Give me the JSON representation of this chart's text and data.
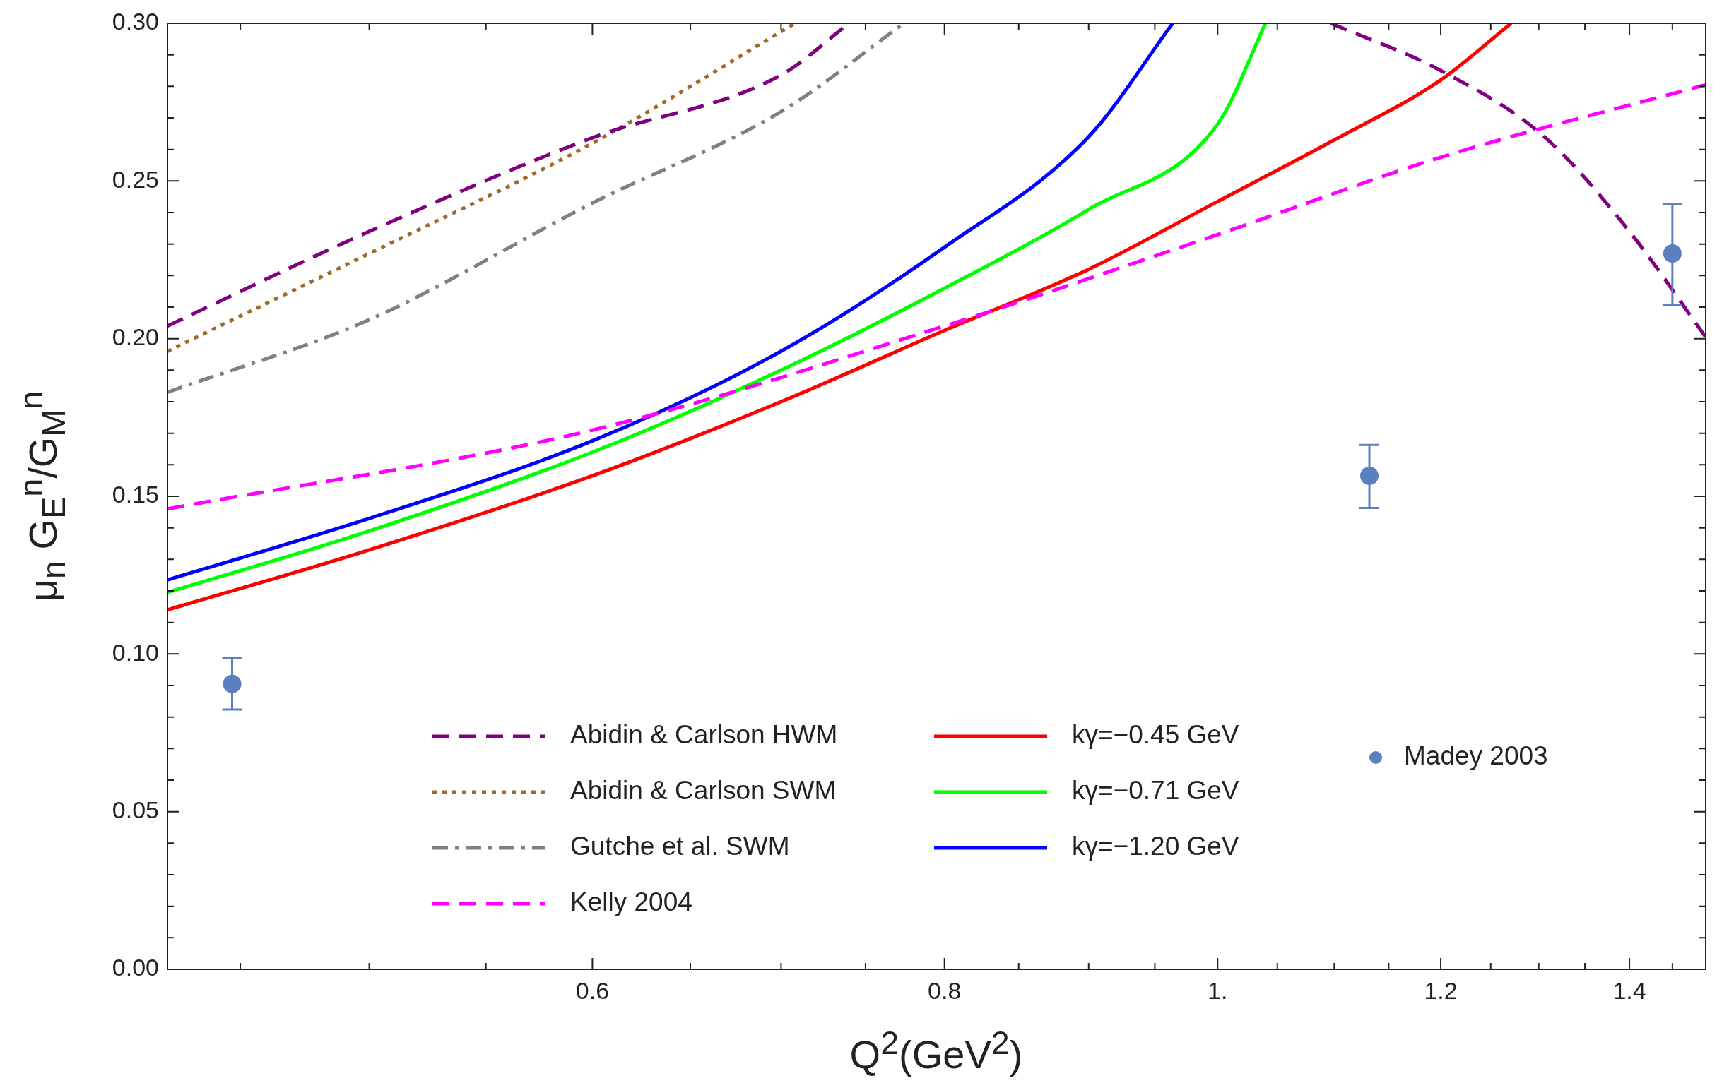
{
  "chart_data": {
    "type": "line",
    "xlabel": "Q$^{2}$(GeV$^{2}$)",
    "ylabel": "μ$_{n}$ G$_{E}$$^{n}$/G$_{M}$$^{n}$",
    "log": "x",
    "grid": false,
    "legend": "bottom",
    "xlim": [
      0.424,
      1.49
    ],
    "ylim": [
      0,
      0.3
    ],
    "xticks": [
      {
        "value": 0.45,
        "label": null
      },
      {
        "value": 0.5,
        "label": null
      },
      {
        "value": 0.55,
        "label": null
      },
      0.6,
      {
        "value": 0.65,
        "label": null
      },
      {
        "value": 0.7,
        "label": null
      },
      {
        "value": 0.75,
        "label": null
      },
      0.8,
      {
        "value": 0.85,
        "label": null
      },
      {
        "value": 0.9,
        "label": null
      },
      {
        "value": 0.95,
        "label": null
      },
      {
        "value": 1.0,
        "label": "1."
      },
      {
        "value": 1.05,
        "label": null
      },
      {
        "value": 1.1,
        "label": null
      },
      {
        "value": 1.15,
        "label": null
      },
      1.2,
      {
        "value": 1.25,
        "label": null
      },
      {
        "value": 1.3,
        "label": null
      },
      {
        "value": 1.35,
        "label": null
      },
      1.4,
      {
        "value": 1.45,
        "label": null
      }
    ],
    "yticks": [
      {
        "value": 0,
        "label": "0.00"
      },
      {
        "value": 0.01,
        "label": null
      },
      {
        "value": 0.02,
        "label": null
      },
      {
        "value": 0.03,
        "label": null
      },
      {
        "value": 0.04,
        "label": null
      },
      0.05,
      {
        "value": 0.06,
        "label": null
      },
      {
        "value": 0.07,
        "label": null
      },
      {
        "value": 0.08,
        "label": null
      },
      {
        "value": 0.09,
        "label": null
      },
      {
        "value": 0.1,
        "label": "0.10"
      },
      {
        "value": 0.11,
        "label": null
      },
      {
        "value": 0.12,
        "label": null
      },
      {
        "value": 0.13,
        "label": null
      },
      {
        "value": 0.14,
        "label": null
      },
      0.15,
      {
        "value": 0.16,
        "label": null
      },
      {
        "value": 0.17,
        "label": null
      },
      {
        "value": 0.18,
        "label": null
      },
      {
        "value": 0.19,
        "label": null
      },
      {
        "value": 0.2,
        "label": "0.20"
      },
      {
        "value": 0.21,
        "label": null
      },
      {
        "value": 0.22,
        "label": null
      },
      {
        "value": 0.23,
        "label": null
      },
      {
        "value": 0.24,
        "label": null
      },
      0.25,
      {
        "value": 0.26,
        "label": null
      },
      {
        "value": 0.27,
        "label": null
      },
      {
        "value": 0.28,
        "label": null
      },
      {
        "value": 0.29,
        "label": null
      },
      {
        "value": 0.3,
        "label": "0.30"
      }
    ],
    "series": [
      {
        "name": "Abidin & Carlson HWM",
        "type": "line",
        "line_style": "dashed",
        "color": "#800080",
        "x": [
          0.424,
          0.5,
          0.6,
          0.7,
          0.74,
          0.9,
          1.097,
          1.2,
          1.306,
          1.4,
          1.49
        ],
        "values": [
          0.204,
          0.234,
          0.2637,
          0.2836,
          0.3,
          null,
          0.3,
          0.285,
          0.264,
          0.234,
          0.2005
        ]
      },
      {
        "name": "Abidin & Carlson SWM",
        "type": "line",
        "line_style": "dotted",
        "color": "#a0682a",
        "x": [
          0.424,
          0.5,
          0.6,
          0.708
        ],
        "values": [
          0.196,
          0.227,
          0.262,
          0.3
        ]
      },
      {
        "name": "Gutche et al. SWM",
        "type": "line",
        "line_style": "dashdot",
        "color": "#808080",
        "x": [
          0.424,
          0.5,
          0.6,
          0.7,
          0.774
        ],
        "values": [
          0.183,
          0.206,
          0.243,
          0.272,
          0.3
        ]
      },
      {
        "name": "Kelly 2004",
        "type": "line",
        "line_style": "dashed",
        "color": "#ff00ff",
        "x": [
          0.424,
          0.6,
          0.8,
          1.0,
          1.2,
          1.49
        ],
        "values": [
          0.146,
          0.171,
          0.204,
          0.233,
          0.2575,
          0.2805
        ]
      },
      {
        "name": "kγ=−0.45 GeV",
        "type": "line",
        "line_style": "solid",
        "color": "#ff0000",
        "x": [
          0.424,
          0.5,
          0.6,
          0.7,
          0.8,
          0.9,
          1.0,
          1.1,
          1.2,
          1.271
        ],
        "values": [
          0.114,
          0.133,
          0.1565,
          0.18,
          0.2026,
          0.222,
          0.2435,
          0.263,
          0.282,
          0.3
        ]
      },
      {
        "name": "kγ=−0.71 GeV",
        "type": "line",
        "line_style": "solid",
        "color": "#00ff00",
        "x": [
          0.424,
          0.5,
          0.6,
          0.7,
          0.8,
          0.9,
          1.0,
          1.04
        ],
        "values": [
          0.1195,
          0.139,
          0.164,
          0.19,
          0.216,
          0.241,
          0.268,
          0.3
        ]
      },
      {
        "name": "kγ=−1.20 GeV",
        "type": "line",
        "line_style": "solid",
        "color": "#0000ff",
        "x": [
          0.424,
          0.5,
          0.6,
          0.7,
          0.8,
          0.9,
          0.964
        ],
        "values": [
          0.1235,
          0.143,
          0.1676,
          0.196,
          0.229,
          0.264,
          0.3
        ]
      },
      {
        "name": "Madey 2003",
        "type": "scatter",
        "marker": "circle",
        "color": "#5b7fbf",
        "x": [
          0.447,
          1.132,
          1.45
        ],
        "values": [
          0.0905,
          0.1565,
          0.227
        ],
        "errors": [
          [
            0.0824,
            0.0988
          ],
          [
            0.1463,
            0.1663
          ],
          [
            0.2106,
            0.2428
          ]
        ]
      }
    ]
  }
}
